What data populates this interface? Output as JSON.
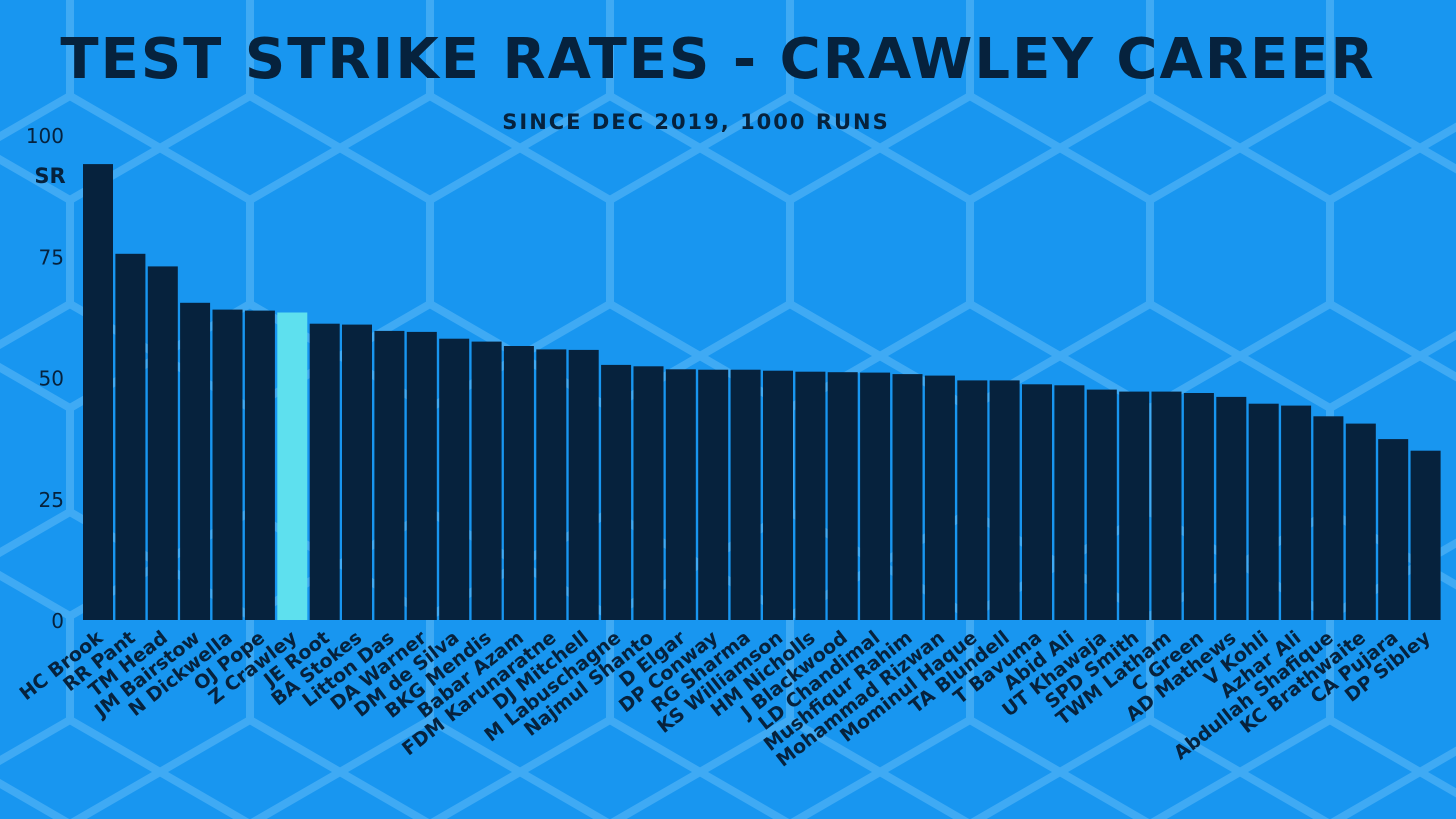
{
  "chart_data": {
    "type": "bar",
    "title": "TEST STRIKE RATES - CRAWLEY CAREER",
    "subtitle": "SINCE DEC 2019, 1000 RUNS",
    "ylabel": "SR",
    "xlabel": "",
    "ylim": [
      0,
      100
    ],
    "yticks": [
      0,
      25,
      50,
      75,
      100
    ],
    "grid": false,
    "highlight_category": "Z Crawley",
    "colors": {
      "background": "#1896f0",
      "bar": "#06223d",
      "highlight": "#5ee0ee",
      "hex_pattern": "#5fbaf8",
      "text": "#06223d"
    },
    "categories": [
      "HC Brook",
      "RR Pant",
      "TM Head",
      "JM Bairstow",
      "N Dickwella",
      "OJ Pope",
      "Z Crawley",
      "JE Root",
      "BA Stokes",
      "Litton Das",
      "DA Warner",
      "DM de Silva",
      "BKG Mendis",
      "Babar Azam",
      "FDM Karunaratne",
      "DJ Mitchell",
      "M Labuschagne",
      "Najmul Shanto",
      "D Elgar",
      "DP Conway",
      "RG Sharma",
      "KS Williamson",
      "HM Nicholls",
      "J Blackwood",
      "LD Chandimal",
      "Mushfiqur Rahim",
      "Mohammad Rizwan",
      "Mominul Haque",
      "TA Blundell",
      "T Bavuma",
      "Abid Ali",
      "UT Khawaja",
      "SPD Smith",
      "TWM Latham",
      "C Green",
      "AD Mathews",
      "V Kohli",
      "Azhar Ali",
      "Abdullah Shafique",
      "KC Brathwaite",
      "CA Pujara",
      "DP Sibley"
    ],
    "values": [
      94,
      75.5,
      72.9,
      65.4,
      64,
      63.8,
      63.4,
      61.1,
      60.9,
      59.6,
      59.4,
      58,
      57.4,
      56.5,
      55.8,
      55.7,
      52.6,
      52.3,
      51.7,
      51.6,
      51.6,
      51.4,
      51.2,
      51.1,
      51,
      50.7,
      50.4,
      49.4,
      49.4,
      48.6,
      48.4,
      47.5,
      47.1,
      47.1,
      46.8,
      46,
      44.6,
      44.2,
      42,
      40.5,
      37.3,
      34.9
    ]
  }
}
